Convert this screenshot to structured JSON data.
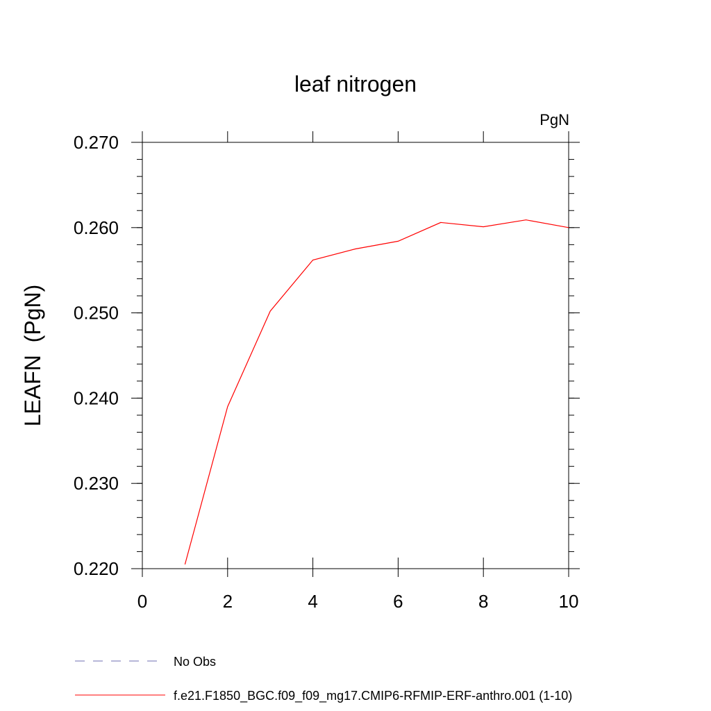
{
  "chart_data": {
    "type": "line",
    "title": "leaf nitrogen",
    "units_label": "PgN",
    "ylabel": "LEAFN  (PgN)",
    "xlabel": "",
    "xlim": [
      0,
      10
    ],
    "ylim": [
      0.22,
      0.27
    ],
    "x_ticks": [
      0,
      2,
      4,
      6,
      8,
      10
    ],
    "x_tick_labels": [
      "0",
      "2",
      "4",
      "6",
      "8",
      "10"
    ],
    "y_ticks": [
      0.22,
      0.23,
      0.24,
      0.25,
      0.26,
      0.27
    ],
    "y_tick_labels": [
      "0.220",
      "0.230",
      "0.240",
      "0.250",
      "0.260",
      "0.270"
    ],
    "grid": false,
    "legend_position": "bottom",
    "series": [
      {
        "name": "f.e21.F1850_BGC.f09_f09_mg17.CMIP6-RFMIP-ERF-anthro.001 (1-10)",
        "color": "#ff0000",
        "dash": "solid",
        "x": [
          1,
          2,
          3,
          4,
          5,
          6,
          7,
          8,
          9,
          10
        ],
        "y": [
          0.2205,
          0.239,
          0.2502,
          0.2562,
          0.2575,
          0.2584,
          0.2606,
          0.2601,
          0.2609,
          0.26
        ]
      }
    ],
    "legend": [
      {
        "label": "No Obs",
        "color": "#6f6fb0",
        "dash": "dashed"
      },
      {
        "label": "f.e21.F1850_BGC.f09_f09_mg17.CMIP6-RFMIP-ERF-anthro.001 (1-10)",
        "color": "#ff0000",
        "dash": "solid"
      }
    ]
  }
}
